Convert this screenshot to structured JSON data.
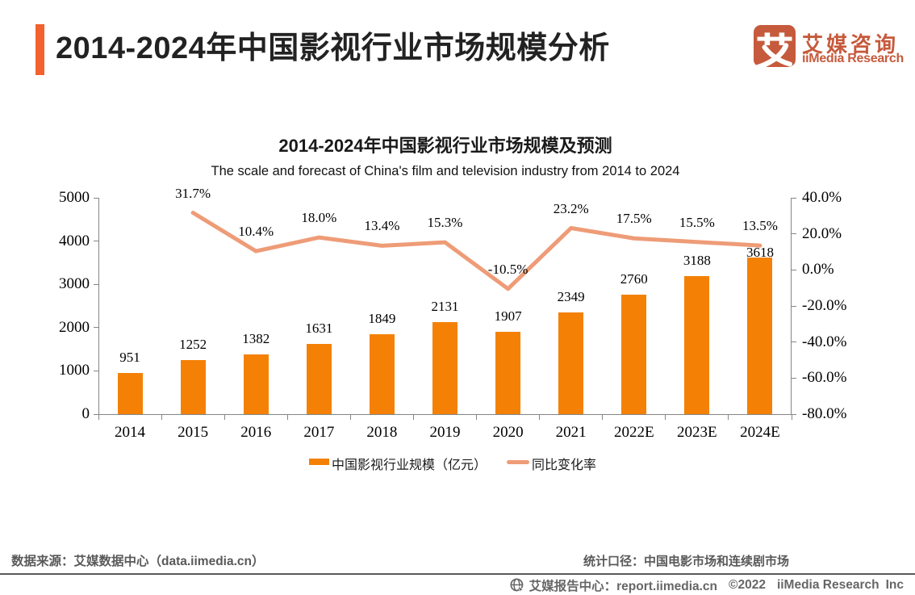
{
  "page_title": "2014-2024年中国影视行业市场规模分析",
  "brand": {
    "logo_glyph": "艾",
    "name_cn": "艾媒咨询",
    "name_en": "iiMedia Research",
    "color": "#C65A3C"
  },
  "chart_data": {
    "type": "bar",
    "title": "2014-2024年中国影视行业市场规模及预测",
    "subtitle": "The scale and forecast of China's film and television industry from 2014 to 2024",
    "categories": [
      "2014",
      "2015",
      "2016",
      "2017",
      "2018",
      "2019",
      "2020",
      "2021",
      "2022E",
      "2023E",
      "2024E"
    ],
    "series": [
      {
        "name": "中国影视行业规模（亿元）",
        "type": "bar",
        "axis": "left",
        "color": "#F48105",
        "values": [
          951,
          1252,
          1382,
          1631,
          1849,
          2131,
          1907,
          2349,
          2760,
          3188,
          3618
        ]
      },
      {
        "name": "同比变化率",
        "type": "line",
        "axis": "right",
        "color": "#EE9C77",
        "suffix": "%",
        "values": [
          null,
          31.7,
          10.4,
          18.0,
          13.4,
          15.3,
          -10.5,
          23.2,
          17.5,
          15.5,
          13.5
        ]
      }
    ],
    "left_axis": {
      "min": 0,
      "max": 5000,
      "step": 1000
    },
    "right_axis": {
      "min": -80,
      "max": 40,
      "step": 20,
      "suffix": "%",
      "decimals": 1
    },
    "grid": false,
    "legend_position": "bottom"
  },
  "footer": {
    "source_note": "数据来源：艾媒数据中心（data.iimedia.cn）",
    "scope_note": "统计口径：中国电影市场和连续剧市场",
    "report_center": "艾媒报告中心：report.iimedia.cn",
    "copyright": "©2022",
    "company": "iiMedia Research",
    "inc": "Inc"
  }
}
